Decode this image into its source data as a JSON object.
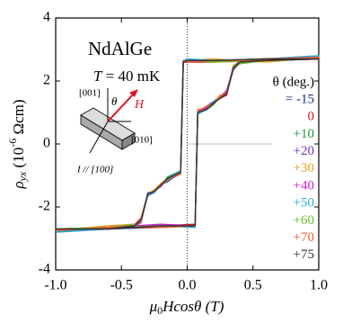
{
  "chart_data": {
    "type": "line",
    "title": "NdAlGe",
    "temperature": {
      "symbol": "T",
      "text": " = 40 mK"
    },
    "x_label": {
      "symbol": "μ",
      "sub": "0",
      "text": "Hcosθ (T)"
    },
    "y_label": {
      "symbol": "ρ",
      "sub": "yx",
      "text": " (10",
      "sup": "-6",
      "unit": " Ωcm)"
    },
    "legend_title": "θ (deg.)",
    "inset": {
      "axis_z": "[001]",
      "angle": "θ",
      "field": "H",
      "axis_y": "[010]",
      "current": "I // [100]"
    },
    "x": [
      -1,
      -0.6,
      -0.2,
      0.06,
      0.08,
      0.15,
      0.2,
      0.25,
      0.3,
      0.35,
      0.4,
      0.6,
      1,
      1,
      0.6,
      0.2,
      0,
      -0.03,
      -0.05,
      -0.15,
      -0.2,
      -0.25,
      -0.3,
      -0.35,
      -0.4,
      -0.6,
      -1
    ],
    "series": [
      {
        "name": "= -15",
        "color": "#1c2a8c",
        "values": [
          -2.75,
          -2.7,
          -2.6,
          -2.6,
          1.0,
          1.15,
          1.3,
          1.5,
          1.6,
          2.4,
          2.6,
          2.7,
          2.75,
          2.75,
          2.65,
          2.65,
          2.65,
          2.65,
          -0.9,
          -1.1,
          -1.3,
          -1.45,
          -1.6,
          -2.4,
          -2.6,
          -2.65,
          -2.75
        ]
      },
      {
        "name": "0",
        "color": "#e01020",
        "values": [
          -2.7,
          -2.65,
          -2.6,
          -2.55,
          1.05,
          1.1,
          1.3,
          1.45,
          1.55,
          2.45,
          2.6,
          2.65,
          2.7,
          2.7,
          2.65,
          2.6,
          2.6,
          2.6,
          -0.95,
          -1.15,
          -1.3,
          -1.5,
          -1.6,
          -2.35,
          -2.55,
          -2.65,
          -2.7
        ]
      },
      {
        "name": "+10",
        "color": "#1a9a3a",
        "values": [
          -2.8,
          -2.65,
          -2.6,
          -2.6,
          0.95,
          1.1,
          1.25,
          1.5,
          1.65,
          2.4,
          2.55,
          2.7,
          2.8,
          2.8,
          2.7,
          2.65,
          2.65,
          2.65,
          -0.85,
          -1.05,
          -1.35,
          -1.5,
          -1.65,
          -2.4,
          -2.6,
          -2.7,
          -2.8
        ]
      },
      {
        "name": "+20",
        "color": "#7030c0",
        "values": [
          -2.7,
          -2.7,
          -2.65,
          -2.6,
          1.0,
          1.2,
          1.35,
          1.5,
          1.6,
          2.35,
          2.6,
          2.65,
          2.7,
          2.7,
          2.7,
          2.65,
          2.6,
          2.6,
          -0.9,
          -1.2,
          -1.3,
          -1.5,
          -1.55,
          -2.45,
          -2.6,
          -2.7,
          -2.7
        ]
      },
      {
        "name": "+30",
        "color": "#e8a020",
        "values": [
          -2.75,
          -2.6,
          -2.6,
          -2.6,
          1.1,
          1.1,
          1.3,
          1.55,
          1.6,
          2.5,
          2.6,
          2.65,
          2.75,
          2.75,
          2.6,
          2.7,
          2.65,
          2.65,
          -0.95,
          -1.1,
          -1.25,
          -1.45,
          -1.6,
          -2.4,
          -2.55,
          -2.6,
          -2.75
        ]
      },
      {
        "name": "+40",
        "color": "#d020d0",
        "values": [
          -2.7,
          -2.65,
          -2.55,
          -2.6,
          1.0,
          1.15,
          1.3,
          1.5,
          1.7,
          2.4,
          2.65,
          2.7,
          2.7,
          2.7,
          2.65,
          2.65,
          2.65,
          2.6,
          -0.9,
          -1.1,
          -1.35,
          -1.5,
          -1.6,
          -2.5,
          -2.6,
          -2.65,
          -2.7
        ]
      },
      {
        "name": "+50",
        "color": "#30a8e0",
        "values": [
          -2.8,
          -2.7,
          -2.6,
          -2.65,
          0.95,
          1.1,
          1.35,
          1.45,
          1.6,
          2.4,
          2.6,
          2.7,
          2.8,
          2.8,
          2.7,
          2.65,
          2.7,
          2.65,
          -0.85,
          -1.1,
          -1.3,
          -1.55,
          -1.65,
          -2.4,
          -2.6,
          -2.7,
          -2.8
        ]
      },
      {
        "name": "+60",
        "color": "#6cc030",
        "values": [
          -2.7,
          -2.65,
          -2.6,
          -2.6,
          1.0,
          1.1,
          1.3,
          1.5,
          1.6,
          2.45,
          2.55,
          2.65,
          2.7,
          2.7,
          2.65,
          2.6,
          2.65,
          2.65,
          -0.9,
          -1.15,
          -1.3,
          -1.5,
          -1.6,
          -2.45,
          -2.55,
          -2.65,
          -2.7
        ]
      },
      {
        "name": "+70",
        "color": "#f06030",
        "values": [
          -2.75,
          -2.65,
          -2.65,
          -2.6,
          1.05,
          1.2,
          1.3,
          1.5,
          1.65,
          2.4,
          2.6,
          2.7,
          2.75,
          2.75,
          2.65,
          2.65,
          2.6,
          2.65,
          -0.95,
          -1.1,
          -1.3,
          -1.5,
          -1.6,
          -2.35,
          -2.6,
          -2.65,
          -2.75
        ]
      },
      {
        "name": "+75",
        "color": "#333333",
        "values": [
          -2.7,
          -2.7,
          -2.6,
          -2.6,
          1.0,
          1.1,
          1.3,
          1.45,
          1.6,
          2.4,
          2.6,
          2.65,
          2.7,
          2.7,
          2.7,
          2.65,
          2.65,
          2.6,
          -0.9,
          -1.1,
          -1.3,
          -1.5,
          -1.6,
          -2.4,
          -2.6,
          -2.7,
          -2.7
        ]
      }
    ],
    "xlim": [
      -1,
      1
    ],
    "xticks": [
      {
        "value": -1,
        "label": "-1.0"
      },
      {
        "value": -0.5,
        "label": "-0.5"
      },
      {
        "value": 0,
        "label": "0.0"
      },
      {
        "value": 0.5,
        "label": "0.5"
      },
      {
        "value": 1,
        "label": "1.0"
      }
    ],
    "ylim": [
      -4,
      4
    ],
    "yticks": [
      -4,
      -2,
      0,
      2,
      4
    ]
  }
}
